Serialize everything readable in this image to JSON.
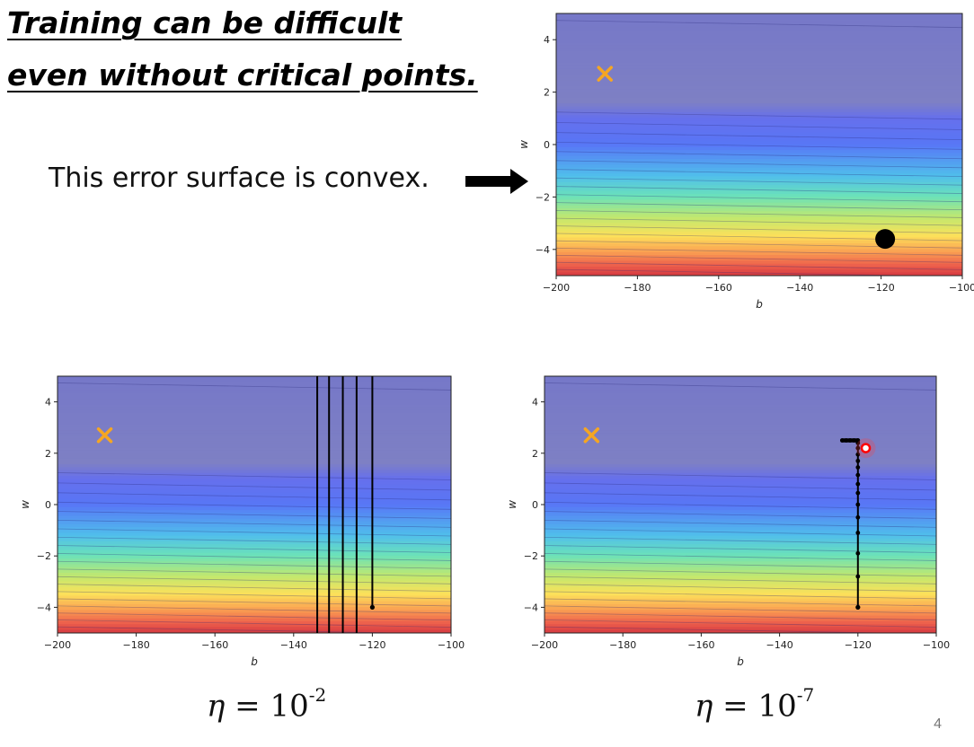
{
  "slide": {
    "title_line1": "Training can be difficult",
    "title_line2": "even without critical points.",
    "statement": "This error surface is convex.",
    "page_number": "4"
  },
  "labels": {
    "eta_symbol": "η",
    "eta_equals": " = 10",
    "eta_left_exponent": "-2",
    "eta_right_exponent": "-7"
  },
  "chart_data": [
    {
      "type": "contour",
      "xlabel": "b",
      "ylabel": "w",
      "xlim": [
        -200,
        -100
      ],
      "ylim": [
        -5,
        5
      ],
      "xticks": [
        -200,
        -180,
        -160,
        -140,
        -120,
        -100
      ],
      "yticks": [
        -4,
        -2,
        0,
        2,
        4
      ],
      "minimum": {
        "b": -188,
        "w": 2.7,
        "marker": "x",
        "color": "#f5a623"
      },
      "start_point": {
        "b": -119,
        "w": -3.6,
        "marker": "large-dot",
        "color": "#000000"
      },
      "path": []
    },
    {
      "type": "contour",
      "xlabel": "b",
      "ylabel": "w",
      "xlim": [
        -200,
        -100
      ],
      "ylim": [
        -5,
        5
      ],
      "xticks": [
        -200,
        -180,
        -160,
        -140,
        -120,
        -100
      ],
      "yticks": [
        -4,
        -2,
        0,
        2,
        4
      ],
      "minimum": {
        "b": -188,
        "w": 2.7,
        "marker": "x",
        "color": "#f5a623"
      },
      "start_point": {
        "b": -120,
        "w": -4,
        "marker": "small-dot",
        "color": "#000000"
      },
      "path_style": "oscillating-vertical",
      "path_b_values": [
        -120,
        -124,
        -127.5,
        -131,
        -134
      ]
    },
    {
      "type": "contour",
      "xlabel": "b",
      "ylabel": "w",
      "xlim": [
        -200,
        -100
      ],
      "ylim": [
        -5,
        5
      ],
      "xticks": [
        -200,
        -180,
        -160,
        -140,
        -120,
        -100
      ],
      "yticks": [
        -4,
        -2,
        0,
        2,
        4
      ],
      "minimum": {
        "b": -188,
        "w": 2.7,
        "marker": "x",
        "color": "#f5a623"
      },
      "start_point": {
        "b": -120,
        "w": -4,
        "marker": "small-dot",
        "color": "#000000"
      },
      "highlight": {
        "b": -118,
        "w": 2.2,
        "marker": "ring",
        "color": "#ff0000"
      },
      "path_style": "slow-descent",
      "path": [
        {
          "b": -120,
          "w": -4.0
        },
        {
          "b": -120,
          "w": -2.8
        },
        {
          "b": -120,
          "w": -1.9
        },
        {
          "b": -120,
          "w": -1.1
        },
        {
          "b": -120,
          "w": -0.5
        },
        {
          "b": -120,
          "w": 0.0
        },
        {
          "b": -120,
          "w": 0.45
        },
        {
          "b": -120,
          "w": 0.8
        },
        {
          "b": -120,
          "w": 1.15
        },
        {
          "b": -120,
          "w": 1.45
        },
        {
          "b": -120,
          "w": 1.7
        },
        {
          "b": -120,
          "w": 1.95
        },
        {
          "b": -120,
          "w": 2.2
        },
        {
          "b": -120,
          "w": 2.4
        },
        {
          "b": -120,
          "w": 2.5
        },
        {
          "b": -121,
          "w": 2.5
        },
        {
          "b": -122,
          "w": 2.5
        },
        {
          "b": -123,
          "w": 2.5
        },
        {
          "b": -124,
          "w": 2.5
        }
      ]
    }
  ],
  "colors": {
    "upper_region": "#7f82c6",
    "minimum_marker": "#f5a623",
    "highlight_ring": "#ff0000"
  }
}
